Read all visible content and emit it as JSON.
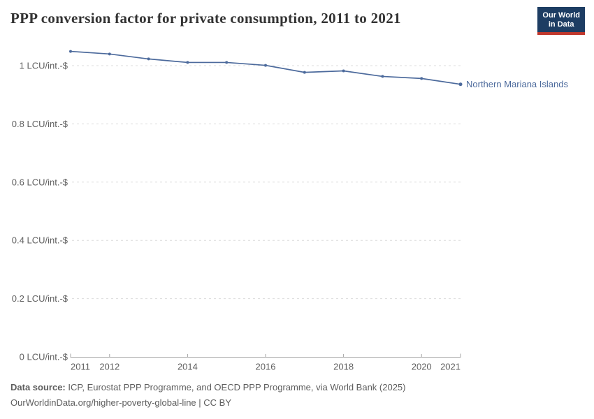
{
  "header": {
    "title": "PPP conversion factor for private consumption, 2011 to 2021",
    "logo": {
      "line1": "Our World",
      "line2": "in Data"
    }
  },
  "chart_data": {
    "type": "line",
    "title": "PPP conversion factor for private consumption, 2011 to 2021",
    "x": [
      2011,
      2012,
      2013,
      2014,
      2015,
      2016,
      2017,
      2018,
      2019,
      2020,
      2021
    ],
    "series": [
      {
        "name": "Northern Mariana Islands",
        "values": [
          1.049,
          1.04,
          1.023,
          1.011,
          1.011,
          1.001,
          0.977,
          0.982,
          0.963,
          0.956,
          0.936
        ]
      }
    ],
    "y_unit_suffix": " LCU/int.-$",
    "y_ticks": [
      0,
      0.2,
      0.4,
      0.6,
      0.8,
      1
    ],
    "x_labeled_years": [
      2011,
      2012,
      2014,
      2016,
      2018,
      2020,
      2021
    ],
    "ylim": [
      0,
      1.05
    ],
    "grid": true,
    "legend_position": "end-of-line"
  },
  "footer": {
    "source_label": "Data source:",
    "source_text": " ICP, Eurostat PPP Programme, and OECD PPP Programme, via World Bank (2025)",
    "license_text": "OurWorldinData.org/higher-poverty-global-line | CC BY"
  },
  "colors": {
    "line": "#4c6a9c",
    "grid": "#dcdcdc",
    "axis": "#a5a5a5",
    "tick_label": "#606060",
    "title": "#333333",
    "footer": "#5d5d5d",
    "logo_bg": "#1d3d63",
    "logo_accent": "#c0382d"
  }
}
